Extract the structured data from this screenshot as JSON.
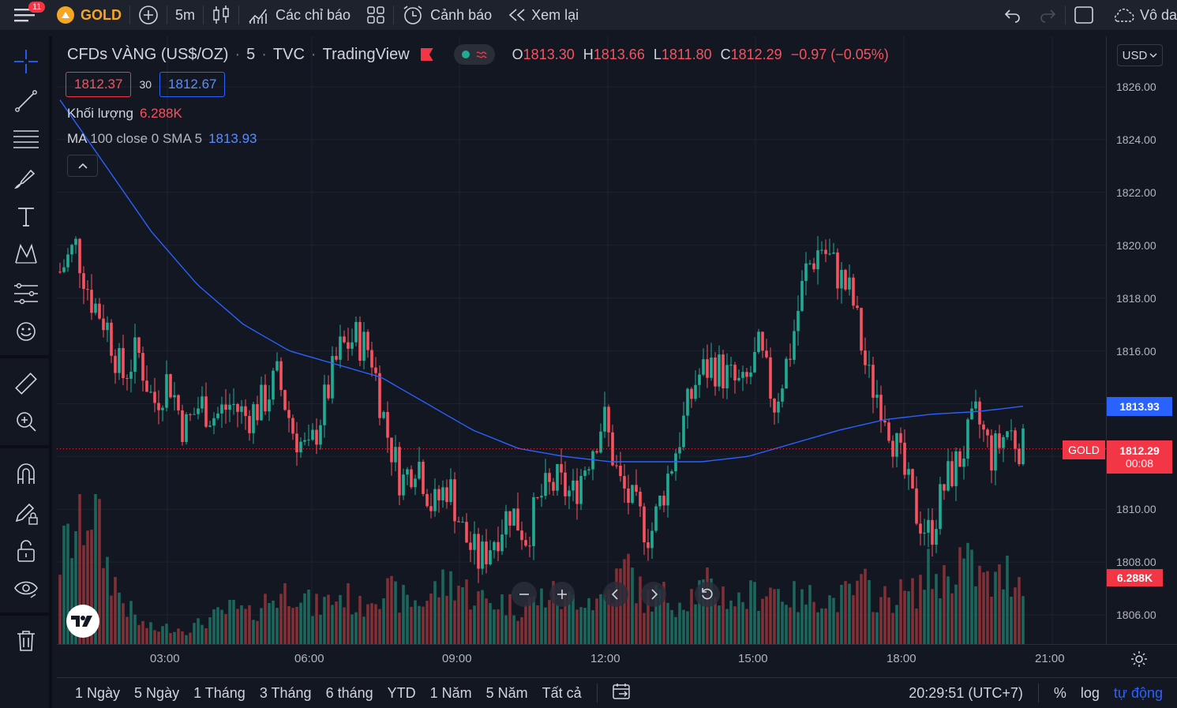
{
  "toolbar": {
    "notification_count": "11",
    "symbol": "GOLD",
    "interval": "5m",
    "indicators_label": "Các chỉ báo",
    "alerts_label": "Cảnh báo",
    "replay_label": "Xem lại",
    "layout_label": "Vô da"
  },
  "legend": {
    "title": "CFDs VÀNG (US$/OZ)",
    "interval": "5",
    "exchange": "TVC",
    "source": "TradingView",
    "o_label": "O",
    "o": "1813.30",
    "h_label": "H",
    "h": "1813.66",
    "l_label": "L",
    "l": "1811.80",
    "c_label": "C",
    "c": "1812.29",
    "change": "−0.97 (−0.05%)"
  },
  "quotes": {
    "sell": "1812.37",
    "spread": "30",
    "buy": "1812.67"
  },
  "indicators": {
    "volume_label": "Khối lượng",
    "volume_value": "6.288K",
    "ma_label": "MA",
    "ma_params": "100 close 0 SMA 5",
    "ma_value": "1813.93"
  },
  "currency": "USD",
  "price_tags": {
    "ma": "1813.93",
    "symbol": "GOLD",
    "last": "1812.29",
    "countdown": "00:08",
    "volume": "6.288K"
  },
  "colors": {
    "up": "#22ab94",
    "down": "#f7525f",
    "ma": "#2962ff",
    "background": "#131722"
  },
  "chart_data": {
    "type": "candlestick",
    "price_axis": [
      "1826.00",
      "1824.00",
      "1822.00",
      "1820.00",
      "1818.00",
      "1816.00",
      "1814.00",
      "1812.00",
      "1810.00",
      "1808.00",
      "1806.00"
    ],
    "time_axis": [
      "03:00",
      "06:00",
      "09:00",
      "12:00",
      "15:00",
      "18:00",
      "21:00"
    ],
    "ylim": [
      1805,
      1827
    ],
    "price_path": [
      1819,
      1820,
      1818,
      1817,
      1815,
      1816,
      1814,
      1815,
      1813,
      1814,
      1813.5,
      1814,
      1813.5,
      1814,
      1815,
      1813,
      1812,
      1814,
      1816,
      1816.5,
      1816,
      1813,
      1811,
      1812,
      1810,
      1811,
      1809,
      1808,
      1809,
      1810,
      1809,
      1810.5,
      1811,
      1810.5,
      1812,
      1813.5,
      1811,
      1810,
      1809,
      1811,
      1813,
      1815,
      1815.5,
      1815,
      1814.5,
      1816,
      1814,
      1816,
      1819,
      1820,
      1819,
      1818,
      1815,
      1814,
      1812,
      1810,
      1809,
      1811,
      1812,
      1813.5,
      1812,
      1813,
      1812.3
    ],
    "ma_path": [
      1825.5,
      1823,
      1820.5,
      1818.5,
      1817,
      1816,
      1815.5,
      1815,
      1814,
      1813,
      1812.3,
      1812,
      1811.8,
      1811.8,
      1811.8,
      1812,
      1812.5,
      1813,
      1813.4,
      1813.6,
      1813.7,
      1813.9
    ],
    "volume_path": [
      0.6,
      0.8,
      1,
      0.55,
      0.3,
      0.15,
      0.1,
      0.12,
      0.1,
      0.15,
      0.2,
      0.25,
      0.2,
      0.3,
      0.35,
      0.4,
      0.25,
      0.3,
      0.35,
      0.25,
      0.4,
      0.35,
      0.3,
      0.3,
      0.4,
      0.45,
      0.35,
      0.3,
      0.3,
      0.25,
      0.3,
      0.35,
      0.3,
      0.35,
      0.3,
      0.4,
      0.55,
      0.3,
      0.35,
      0.3,
      0.35,
      0.4,
      0.35,
      0.3,
      0.35,
      0.4,
      0.35,
      0.3,
      0.35,
      0.3,
      0.35,
      0.4,
      0.3,
      0.35,
      0.35,
      0.5,
      0.45,
      0.6,
      0.5,
      0.4,
      0.5,
      0.45
    ]
  },
  "bottom": {
    "ranges": [
      "1 Ngày",
      "5 Ngày",
      "1 Tháng",
      "3 Tháng",
      "6 tháng",
      "YTD",
      "1 Năm",
      "5 Năm",
      "Tất cả"
    ],
    "clock": "20:29:51 (UTC+7)",
    "percent": "%",
    "log": "log",
    "auto": "tự động"
  }
}
